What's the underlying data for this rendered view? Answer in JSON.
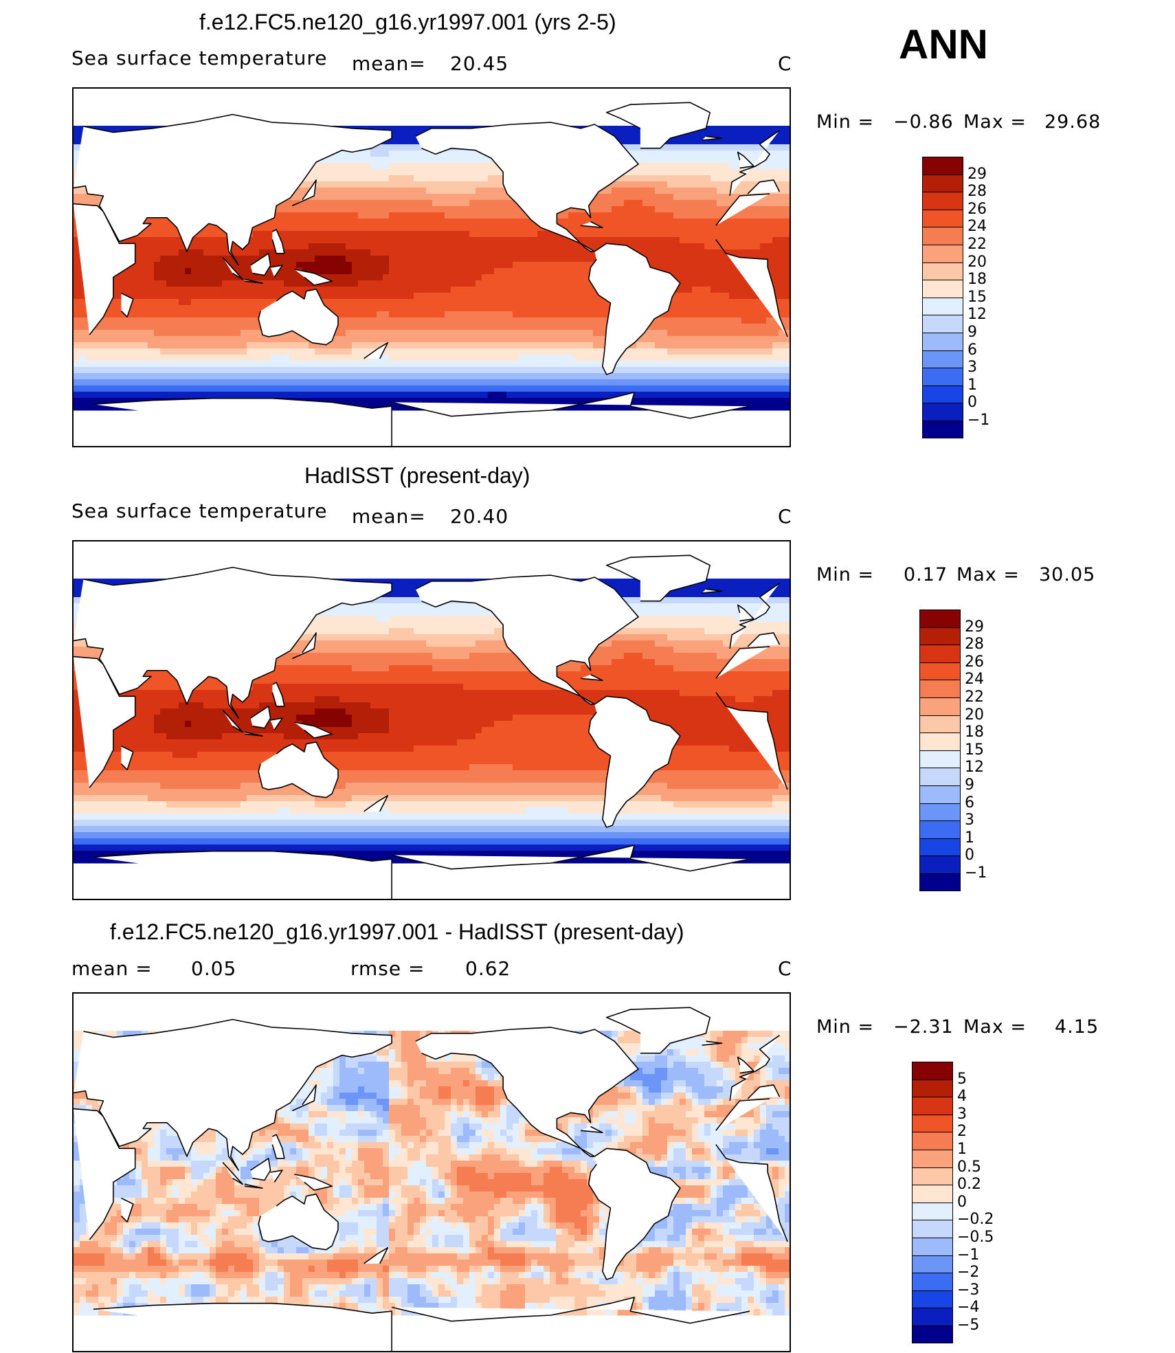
{
  "season": "ANN",
  "colors": {
    "sst": [
      "#00008c",
      "#0b1fc0",
      "#1846e6",
      "#3b6cf2",
      "#6b95f6",
      "#9dbafa",
      "#c6d9fc",
      "#e1efff",
      "#ffe6d2",
      "#fcc8a8",
      "#f9a27c",
      "#f67c52",
      "#ef5527",
      "#d73514",
      "#b41f08",
      "#870303"
    ],
    "diff": [
      "#00008c",
      "#0b1fc0",
      "#1846e6",
      "#3b6cf2",
      "#6b95f6",
      "#9dbafa",
      "#c6d9fc",
      "#e1efff",
      "#ffe6d2",
      "#fcc8a8",
      "#f9a27c",
      "#f67c52",
      "#ef5527",
      "#d73514",
      "#b41f08",
      "#870303"
    ]
  },
  "panels": [
    {
      "title": "f.e12.FC5.ne120_g16.yr1997.001 (yrs 2-5)",
      "left_label": "Sea surface temperature",
      "mean_label": "mean=",
      "mean_value": "20.45",
      "units": "C",
      "min_label": "Min =",
      "min_value": "−0.86",
      "max_label": "Max =",
      "max_value": "29.68",
      "colorbar_labels": [
        "29",
        "28",
        "26",
        "24",
        "22",
        "20",
        "18",
        "15",
        "12",
        "9",
        "6",
        "3",
        "1",
        "0",
        "−1"
      ]
    },
    {
      "title": "HadISST (present-day)",
      "left_label": "Sea surface temperature",
      "mean_label": "mean=",
      "mean_value": "20.40",
      "units": "C",
      "min_label": "Min =",
      "min_value": "0.17",
      "max_label": "Max =",
      "max_value": "30.05",
      "colorbar_labels": [
        "29",
        "28",
        "26",
        "24",
        "22",
        "20",
        "18",
        "15",
        "12",
        "9",
        "6",
        "3",
        "1",
        "0",
        "−1"
      ]
    },
    {
      "title": "f.e12.FC5.ne120_g16.yr1997.001 - HadISST (present-day)",
      "left_label": "mean =",
      "mean_label": "0.05",
      "rmse_label": "rmse =",
      "rmse_value": "0.62",
      "units": "C",
      "min_label": "Min =",
      "min_value": "−2.31",
      "max_label": "Max =",
      "max_value": "4.15",
      "colorbar_labels": [
        "5",
        "4",
        "3",
        "2",
        "1",
        "0.5",
        "0.2",
        "0",
        "−0.2",
        "−0.5",
        "−1",
        "−2",
        "−3",
        "−4",
        "−5"
      ]
    }
  ],
  "chart_data": [
    {
      "type": "heatmap",
      "title": "f.e12.FC5.ne120_g16.yr1997.001 (yrs 2-5)",
      "variable": "Sea surface temperature",
      "units": "C",
      "mean": 20.45,
      "min": -0.86,
      "max": 29.68,
      "contour_levels": [
        -1,
        0,
        1,
        3,
        6,
        9,
        12,
        15,
        18,
        20,
        22,
        24,
        26,
        28,
        29
      ],
      "projection": "cylindrical equidistant, Pacific-centered",
      "grid": false
    },
    {
      "type": "heatmap",
      "title": "HadISST (present-day)",
      "variable": "Sea surface temperature",
      "units": "C",
      "mean": 20.4,
      "min": 0.17,
      "max": 30.05,
      "contour_levels": [
        -1,
        0,
        1,
        3,
        6,
        9,
        12,
        15,
        18,
        20,
        22,
        24,
        26,
        28,
        29
      ],
      "projection": "cylindrical equidistant, Pacific-centered",
      "grid": false
    },
    {
      "type": "heatmap",
      "title": "f.e12.FC5.ne120_g16.yr1997.001 - HadISST (present-day)",
      "units": "C",
      "mean": 0.05,
      "rmse": 0.62,
      "min": -2.31,
      "max": 4.15,
      "contour_levels": [
        -5,
        -4,
        -3,
        -2,
        -1,
        -0.5,
        -0.2,
        0,
        0.2,
        0.5,
        1,
        2,
        3,
        4,
        5
      ],
      "projection": "cylindrical equidistant, Pacific-centered",
      "grid": false
    }
  ]
}
